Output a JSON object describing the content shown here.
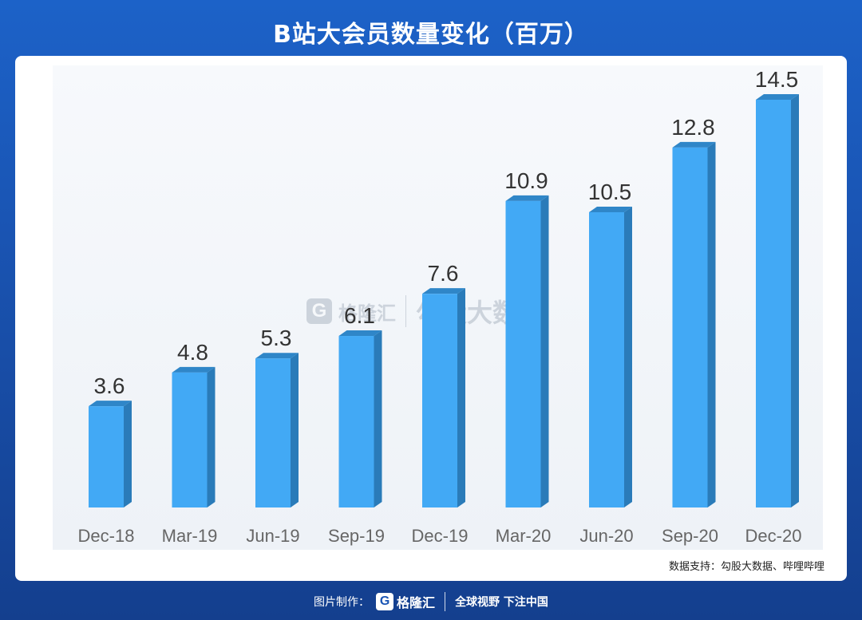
{
  "header": {
    "title": "B站大会员数量变化（百万）"
  },
  "watermark": {
    "logo_letter": "G",
    "brand": "格隆汇",
    "text": "勾股大数据"
  },
  "source": {
    "text": "数据支持：勾股大数据、哔哩哔哩"
  },
  "footer": {
    "prefix": "图片制作：",
    "logo_letter": "G",
    "brand": "格隆汇",
    "slogan": "全球视野 下注中国"
  },
  "colors": {
    "bar_front": "#42a9f5",
    "bar_side": "#2a7bb9",
    "bar_top": "#2f86c8"
  },
  "chart_data": {
    "type": "bar",
    "title": "B站大会员数量变化（百万）",
    "categories": [
      "Dec-18",
      "Mar-19",
      "Jun-19",
      "Sep-19",
      "Dec-19",
      "Mar-20",
      "Jun-20",
      "Sep-20",
      "Dec-20"
    ],
    "values": [
      3.6,
      4.8,
      5.3,
      6.1,
      7.6,
      10.9,
      10.5,
      12.8,
      14.5
    ],
    "data_labels": [
      "3.6",
      "4.8",
      "5.3",
      "6.1",
      "7.6",
      "10.9",
      "10.5",
      "12.8",
      "14.5"
    ],
    "ylim": [
      0,
      14.5
    ],
    "grid": false,
    "legend": "none"
  }
}
